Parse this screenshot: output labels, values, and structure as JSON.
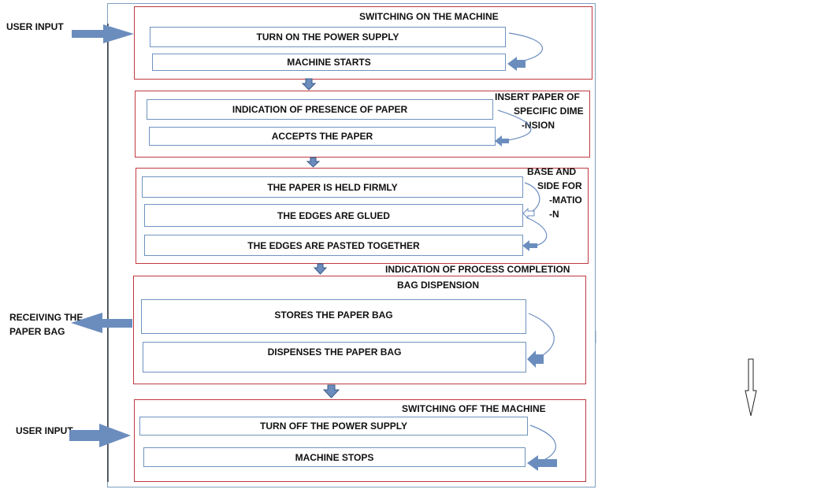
{
  "left_labels": {
    "user_input_top": "USER INPUT",
    "receiving_line1": "RECEIVING THE",
    "receiving_line2": "PAPER BAG",
    "user_input_bottom": "USER INPUT"
  },
  "stages": {
    "switch_on": {
      "title": "SWITCHING ON THE MACHINE",
      "steps": [
        "TURN ON THE POWER SUPPLY",
        "MACHINE STARTS"
      ]
    },
    "paper": {
      "note_lines": [
        "INSERT PAPER OF",
        "SPECIFIC DIME",
        "-NSION"
      ],
      "steps": [
        "INDICATION OF PRESENCE OF PAPER",
        "ACCEPTS THE PAPER"
      ]
    },
    "formation": {
      "note_lines": [
        "BASE AND",
        "SIDE FOR",
        "-MATIO",
        "-N"
      ],
      "steps": [
        "THE PAPER IS HELD FIRMLY",
        "THE EDGES ARE GLUED",
        "THE EDGES ARE PASTED TOGETHER"
      ]
    },
    "dispense": {
      "completion_note": "INDICATION OF PROCESS COMPLETION",
      "title": "BAG DISPENSION",
      "steps": [
        "STORES THE PAPER BAG",
        "DISPENSES THE PAPER BAG"
      ]
    },
    "switch_off": {
      "title": "SWITCHING OFF THE MACHINE",
      "steps": [
        "TURN OFF THE POWER SUPPLY",
        "MACHINE STOPS"
      ]
    }
  },
  "colors": {
    "stage_border": "#c0393f",
    "step_border": "#6f93bf",
    "arrow_fill": "#6b8dbe",
    "arrow_dark": "#4a6a99"
  }
}
